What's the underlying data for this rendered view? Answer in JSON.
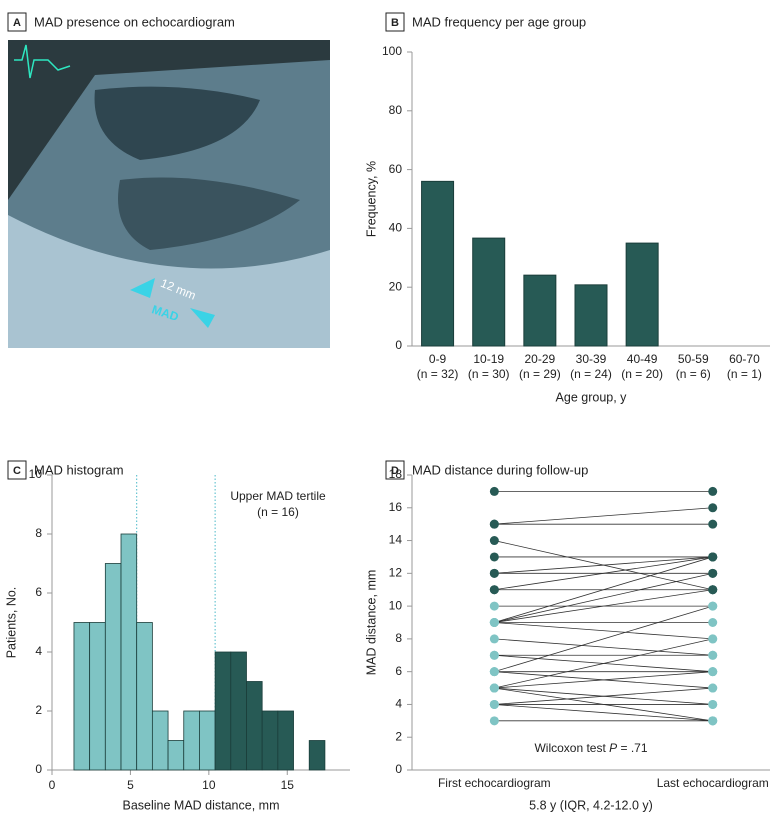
{
  "chart_data": [
    {
      "type": "image",
      "label": "A",
      "title": "MAD presence on echocardiogram",
      "annotations": [
        "12 mm",
        "MAD"
      ]
    },
    {
      "type": "bar",
      "label": "B",
      "title": "MAD frequency per age group",
      "categories": [
        "0-9",
        "10-19",
        "20-29",
        "30-39",
        "40-49",
        "50-59",
        "60-70"
      ],
      "category_counts": [
        "(n = 32)",
        "(n = 30)",
        "(n = 29)",
        "(n = 24)",
        "(n = 20)",
        "(n = 6)",
        "(n = 1)"
      ],
      "values": [
        56,
        36.7,
        24.1,
        20.8,
        35,
        0,
        0
      ],
      "color": "#275a55",
      "ylim": [
        0,
        100
      ],
      "yticks": [
        0,
        20,
        40,
        60,
        80,
        100
      ],
      "xlabel": "Age group, y",
      "ylabel": "Frequency, %"
    },
    {
      "type": "histogram",
      "label": "C",
      "title": "MAD histogram",
      "bins": [
        1.4,
        2.4,
        3.4,
        4.4,
        5.4,
        6.4,
        7.4,
        8.4,
        9.4,
        10.4,
        11.4,
        12.4,
        13.4,
        14.4,
        15.4,
        16.4,
        17.4
      ],
      "values": [
        5,
        5,
        7,
        8,
        5,
        2,
        1,
        2,
        2,
        4,
        4,
        3,
        2,
        2,
        0,
        1
      ],
      "colors": [
        "#7fc4c4",
        "#7fc4c4",
        "#7fc4c4",
        "#7fc4c4",
        "#7fc4c4",
        "#7fc4c4",
        "#7fc4c4",
        "#7fc4c4",
        "#7fc4c4",
        "#275a55",
        "#275a55",
        "#275a55",
        "#275a55",
        "#275a55",
        "#275a55",
        "#275a55"
      ],
      "vlines": [
        5.4,
        10.4
      ],
      "xlim": [
        0,
        19
      ],
      "xticks": [
        0,
        5,
        10,
        15
      ],
      "ylim": [
        0,
        10
      ],
      "yticks": [
        0,
        2,
        4,
        6,
        8,
        10
      ],
      "xlabel": "Baseline MAD distance, mm",
      "ylabel": "Patients, No.",
      "annotations": [
        "Upper MAD tertile",
        "(n = 16)"
      ]
    },
    {
      "type": "paired",
      "label": "D",
      "title": "MAD distance during follow-up",
      "categories": [
        "First echocardiogram",
        "Last echocardiogram"
      ],
      "first": [
        17,
        15,
        15,
        14,
        13,
        12,
        12,
        11,
        11,
        10,
        9,
        9,
        9,
        9,
        9,
        8,
        7,
        7,
        6,
        6,
        6,
        5,
        5,
        5,
        5,
        4,
        4,
        4,
        3
      ],
      "last": [
        17,
        16,
        15,
        11,
        13,
        13,
        12,
        11,
        13,
        10,
        13,
        12,
        11,
        9,
        8,
        7,
        7,
        6,
        10,
        6,
        5,
        8,
        6,
        4,
        3,
        5,
        4,
        3,
        3
      ],
      "first_colors": [
        "#275a55",
        "#275a55",
        "#275a55",
        "#275a55",
        "#275a55",
        "#275a55",
        "#275a55",
        "#275a55",
        "#275a55",
        "#7fc4c4",
        "#7fc4c4",
        "#7fc4c4",
        "#7fc4c4",
        "#7fc4c4",
        "#7fc4c4",
        "#7fc4c4",
        "#7fc4c4",
        "#7fc4c4",
        "#7fc4c4",
        "#7fc4c4",
        "#7fc4c4",
        "#7fc4c4",
        "#7fc4c4",
        "#7fc4c4",
        "#7fc4c4",
        "#7fc4c4",
        "#7fc4c4",
        "#7fc4c4",
        "#7fc4c4"
      ],
      "last_colors": [
        "#275a55",
        "#275a55",
        "#275a55",
        "#275a55",
        "#275a55",
        "#275a55",
        "#275a55",
        "#275a55",
        "#275a55",
        "#7fc4c4",
        "#275a55",
        "#275a55",
        "#275a55",
        "#7fc4c4",
        "#7fc4c4",
        "#7fc4c4",
        "#7fc4c4",
        "#7fc4c4",
        "#7fc4c4",
        "#7fc4c4",
        "#7fc4c4",
        "#7fc4c4",
        "#7fc4c4",
        "#7fc4c4",
        "#7fc4c4",
        "#7fc4c4",
        "#7fc4c4",
        "#7fc4c4",
        "#7fc4c4"
      ],
      "ylim": [
        0,
        18
      ],
      "yticks": [
        0,
        2,
        4,
        6,
        8,
        10,
        12,
        14,
        16,
        18
      ],
      "ylabel": "MAD distance, mm",
      "xlabel": "5.8 y (IQR, 4.2-12.0 y)",
      "annotation": [
        "Wilcoxon test ",
        "P",
        " = .71"
      ]
    }
  ]
}
